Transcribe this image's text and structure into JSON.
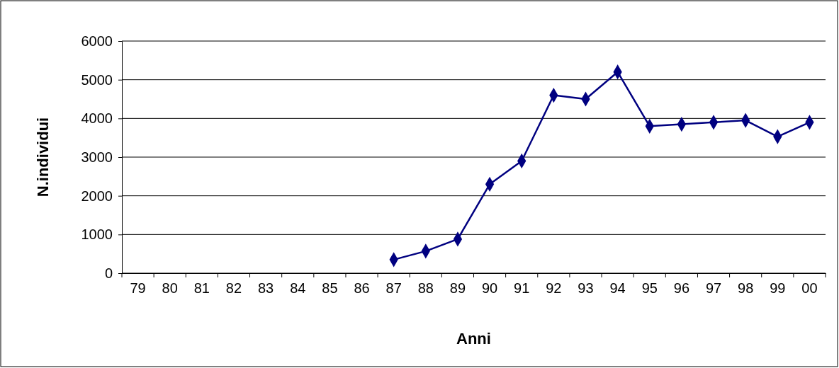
{
  "chart_data": {
    "type": "line",
    "xlabel": "Anni",
    "ylabel": "N.individui",
    "categories": [
      "79",
      "80",
      "81",
      "82",
      "83",
      "84",
      "85",
      "86",
      "87",
      "88",
      "89",
      "90",
      "91",
      "92",
      "93",
      "94",
      "95",
      "96",
      "97",
      "98",
      "99",
      "00"
    ],
    "series": [
      {
        "color": "#000080",
        "values": [
          null,
          null,
          null,
          null,
          null,
          null,
          null,
          null,
          350,
          570,
          880,
          2300,
          2900,
          4600,
          4500,
          5200,
          3800,
          3850,
          3900,
          3950,
          3530,
          3900
        ]
      }
    ],
    "ylim": [
      0,
      6000
    ],
    "yticks": [
      0,
      1000,
      2000,
      3000,
      4000,
      5000,
      6000
    ],
    "grid": "y",
    "marker": "diamond",
    "line_style": "solid"
  }
}
